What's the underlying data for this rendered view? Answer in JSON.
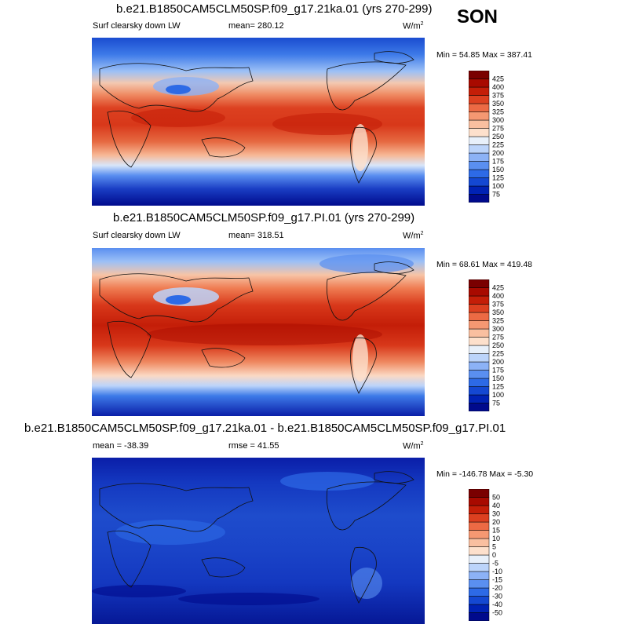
{
  "season": "SON",
  "chart_data": [
    {
      "type": "heatmap",
      "title": "b.e21.B1850CAM5CLM50SP.f09_g17.21ka.01 (yrs 270-299)",
      "variable": "Surf clearsky down LW",
      "mean_label": "mean= 280.12",
      "units_base": "W/m",
      "units_exp": "2",
      "minmax_label": "Min =  54.85 Max = 387.41",
      "min": 54.85,
      "max": 387.41,
      "mean": 280.12,
      "colorbar": {
        "levels": [
          "75",
          "100",
          "125",
          "150",
          "175",
          "200",
          "225",
          "250",
          "275",
          "300",
          "325",
          "350",
          "375",
          "400",
          "425"
        ],
        "colors": [
          "#000a8c",
          "#0022b4",
          "#1448d2",
          "#2d6ae6",
          "#5a8ff0",
          "#8cb2f6",
          "#bcd4fa",
          "#e8f0fa",
          "#fde0cc",
          "#f9bfa0",
          "#f59872",
          "#ec6a44",
          "#dc4020",
          "#c41e08",
          "#a80a00",
          "#7a0000"
        ]
      }
    },
    {
      "type": "heatmap",
      "title": "b.e21.B1850CAM5CLM50SP.f09_g17.PI.01 (yrs 270-299)",
      "variable": "Surf clearsky down LW",
      "mean_label": "mean= 318.51",
      "units_base": "W/m",
      "units_exp": "2",
      "minmax_label": "Min =  68.61 Max = 419.48",
      "min": 68.61,
      "max": 419.48,
      "mean": 318.51,
      "colorbar": {
        "levels": [
          "75",
          "100",
          "125",
          "150",
          "175",
          "200",
          "225",
          "250",
          "275",
          "300",
          "325",
          "350",
          "375",
          "400",
          "425"
        ],
        "colors": [
          "#000a8c",
          "#0022b4",
          "#1448d2",
          "#2d6ae6",
          "#5a8ff0",
          "#8cb2f6",
          "#bcd4fa",
          "#e8f0fa",
          "#fde0cc",
          "#f9bfa0",
          "#f59872",
          "#ec6a44",
          "#dc4020",
          "#c41e08",
          "#a80a00",
          "#7a0000"
        ]
      }
    },
    {
      "type": "heatmap",
      "title": "b.e21.B1850CAM5CLM50SP.f09_g17.21ka.01 - b.e21.B1850CAM5CLM50SP.f09_g17.PI.01",
      "mean_label": "mean = -38.39",
      "rmse_label": "rmse =  41.55",
      "units_base": "W/m",
      "units_exp": "2",
      "minmax_label": "Min = -146.78 Max =  -5.30",
      "min": -146.78,
      "max": -5.3,
      "mean": -38.39,
      "rmse": 41.55,
      "colorbar": {
        "levels": [
          "-50",
          "-40",
          "-30",
          "-20",
          "-15",
          "-10",
          "-5",
          "0",
          "5",
          "10",
          "15",
          "20",
          "30",
          "40",
          "50"
        ],
        "colors": [
          "#000a8c",
          "#0022b4",
          "#1448d2",
          "#2d6ae6",
          "#5a8ff0",
          "#8cb2f6",
          "#bcd4fa",
          "#e8f0fa",
          "#fde0cc",
          "#f9bfa0",
          "#f59872",
          "#ec6a44",
          "#dc4020",
          "#c41e08",
          "#a80a00",
          "#7a0000"
        ]
      }
    }
  ]
}
